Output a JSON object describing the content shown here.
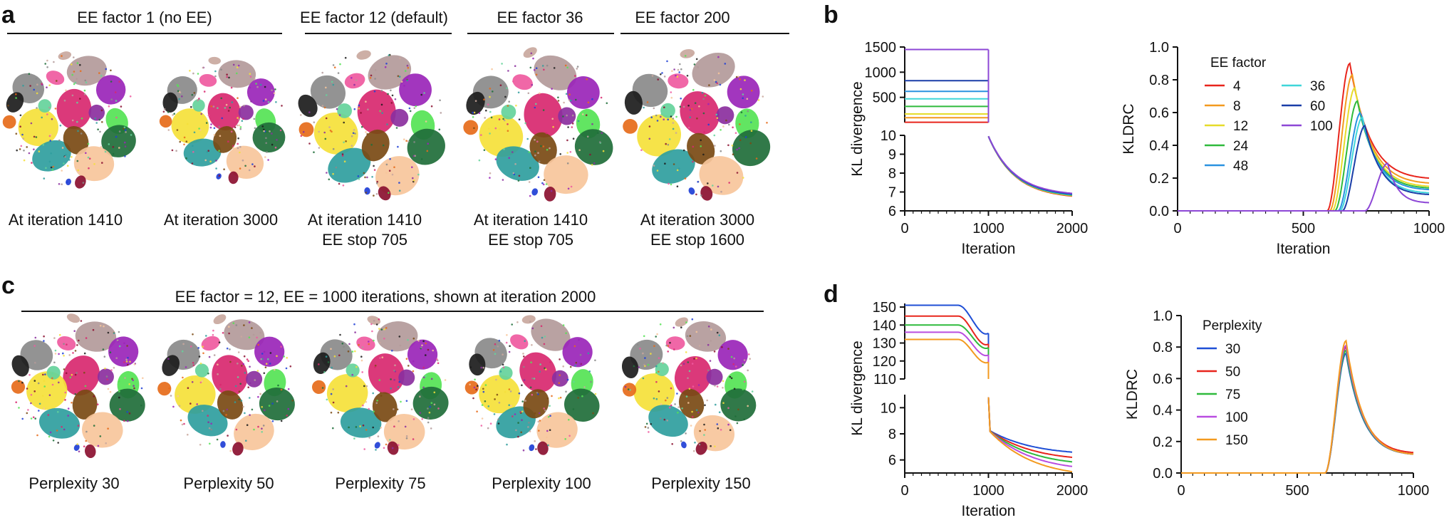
{
  "panel_labels": {
    "a": "a",
    "b": "b",
    "c": "c",
    "d": "d"
  },
  "colors": {
    "ee4": "#e8251c",
    "ee8": "#f39a1f",
    "ee12": "#e6dc2a",
    "ee24": "#2fba3c",
    "ee36": "#3fd6d9",
    "ee48": "#2a92e0",
    "ee60": "#1a3ea8",
    "ee100": "#8d47d6",
    "p30": "#1f4fd6",
    "p50": "#e8251c",
    "p75": "#2fba3c",
    "p100": "#b94de0",
    "p150": "#f39a1f",
    "cluster_palette": [
      "#b39a9a",
      "#c9a89e",
      "#8b2f9e",
      "#9a25b8",
      "#55e355",
      "#1f6e3a",
      "#d8286f",
      "#ef5aa0",
      "#f5e13a",
      "#2f9e9e",
      "#7a4a14",
      "#f7c59b",
      "#8a8a8a",
      "#1c1c1c",
      "#e66b1a",
      "#1f3fd6",
      "#8b1030",
      "#65d39b"
    ]
  },
  "panel_a": {
    "groups": [
      {
        "title": "EE factor 1 (no EE)"
      },
      {
        "title": "EE factor 12 (default)"
      },
      {
        "title": "EE factor 36"
      },
      {
        "title": "EE factor 200"
      }
    ],
    "captions": [
      {
        "line1": "At iteration 1410",
        "line2": ""
      },
      {
        "line1": "At iteration 3000",
        "line2": ""
      },
      {
        "line1": "At iteration 1410",
        "line2": "EE stop 705"
      },
      {
        "line1": "At iteration 1410",
        "line2": "EE stop 705"
      },
      {
        "line1": "At iteration 3000",
        "line2": "EE stop 1600"
      }
    ]
  },
  "panel_c": {
    "title": "EE factor = 12, EE = 1000 iterations, shown at iteration 2000",
    "captions": [
      "Perplexity 30",
      "Perplexity 50",
      "Perplexity 75",
      "Perplexity 100",
      "Perplexity 150"
    ]
  },
  "chart_data": [
    {
      "id": "b-kl",
      "type": "line",
      "title": "",
      "xlabel": "Iteration",
      "ylabel": "KL divergence",
      "xlim": [
        0,
        2000
      ],
      "x_ticks": [
        "0",
        "1000",
        "2000"
      ],
      "upper_ylim": [
        0,
        1500
      ],
      "upper_y_ticks": [
        "500",
        "1000",
        "1500"
      ],
      "lower_ylim": [
        6,
        10
      ],
      "lower_y_ticks": [
        "6",
        "7",
        "8",
        "9",
        "10"
      ],
      "series": [
        {
          "name": "4",
          "color_key": "ee4",
          "ee_value": 5,
          "final": 6.65
        },
        {
          "name": "8",
          "color_key": "ee8",
          "ee_value": 95,
          "final": 6.67
        },
        {
          "name": "12",
          "color_key": "ee12",
          "ee_value": 170,
          "final": 6.69
        },
        {
          "name": "24",
          "color_key": "ee24",
          "ee_value": 320,
          "final": 6.7
        },
        {
          "name": "36",
          "color_key": "ee36",
          "ee_value": 470,
          "final": 6.72
        },
        {
          "name": "48",
          "color_key": "ee48",
          "ee_value": 620,
          "final": 6.74
        },
        {
          "name": "60",
          "color_key": "ee60",
          "ee_value": 830,
          "final": 6.76
        },
        {
          "name": "100",
          "color_key": "ee100",
          "ee_value": 1450,
          "final": 6.8
        }
      ]
    },
    {
      "id": "b-kldrc",
      "type": "line",
      "title": "",
      "xlabel": "Iteration",
      "ylabel": "KLDRC",
      "xlim": [
        0,
        1000
      ],
      "x_ticks": [
        "0",
        "500",
        "1000"
      ],
      "ylim": [
        0,
        1.0
      ],
      "y_ticks": [
        "0.0",
        "0.2",
        "0.4",
        "0.6",
        "0.8",
        "1.0"
      ],
      "legend_title": "EE factor",
      "legend_position": "top-left",
      "series": [
        {
          "name": "4",
          "color_key": "ee4",
          "peak_x": 685,
          "peak_y": 0.9,
          "tail": 0.2
        },
        {
          "name": "8",
          "color_key": "ee8",
          "peak_x": 695,
          "peak_y": 0.83,
          "tail": 0.17
        },
        {
          "name": "12",
          "color_key": "ee12",
          "peak_x": 705,
          "peak_y": 0.75,
          "tail": 0.15
        },
        {
          "name": "24",
          "color_key": "ee24",
          "peak_x": 715,
          "peak_y": 0.67,
          "tail": 0.14
        },
        {
          "name": "48",
          "color_key": "ee48",
          "peak_x": 728,
          "peak_y": 0.6,
          "tail": 0.13
        },
        {
          "name": "36",
          "color_key": "ee36",
          "peak_x": 735,
          "peak_y": 0.57,
          "tail": 0.11
        },
        {
          "name": "60",
          "color_key": "ee60",
          "peak_x": 745,
          "peak_y": 0.52,
          "tail": 0.1
        },
        {
          "name": "100",
          "color_key": "ee100",
          "peak_x": 835,
          "peak_y": 0.29,
          "tail": 0.05
        }
      ],
      "legend_order": [
        "4",
        "8",
        "12",
        "24",
        "48",
        "36",
        "60",
        "100"
      ]
    },
    {
      "id": "d-kl",
      "type": "line",
      "title": "",
      "xlabel": "Iteration",
      "ylabel": "KL divergence",
      "xlim": [
        0,
        2000
      ],
      "x_ticks": [
        "0",
        "1000",
        "2000"
      ],
      "upper_ylim": [
        110,
        152
      ],
      "upper_y_ticks": [
        "110",
        "120",
        "130",
        "140",
        "150"
      ],
      "lower_ylim": [
        5,
        11
      ],
      "lower_y_ticks": [
        "6",
        "8",
        "10"
      ],
      "series": [
        {
          "name": "30",
          "color_key": "p30",
          "ee_value": 151,
          "final": 6.6
        },
        {
          "name": "50",
          "color_key": "p50",
          "ee_value": 145,
          "final": 6.2
        },
        {
          "name": "75",
          "color_key": "p75",
          "ee_value": 140,
          "final": 5.85
        },
        {
          "name": "100",
          "color_key": "p100",
          "ee_value": 136,
          "final": 5.5
        },
        {
          "name": "150",
          "color_key": "p150",
          "ee_value": 132,
          "final": 5.1
        }
      ]
    },
    {
      "id": "d-kldrc",
      "type": "line",
      "title": "",
      "xlabel": "",
      "ylabel": "KLDRC",
      "xlim": [
        0,
        1000
      ],
      "x_ticks": [
        "0",
        "500",
        "1000"
      ],
      "ylim": [
        0,
        1.0
      ],
      "y_ticks": [
        "0.0",
        "0.2",
        "0.4",
        "0.6",
        "0.8",
        "1.0"
      ],
      "legend_title": "Perplexity",
      "legend_position": "top-left",
      "series": [
        {
          "name": "30",
          "color_key": "p30",
          "peak_x": 710,
          "peak_y": 0.76,
          "tail": 0.12
        },
        {
          "name": "50",
          "color_key": "p50",
          "peak_x": 710,
          "peak_y": 0.8,
          "tail": 0.13
        },
        {
          "name": "75",
          "color_key": "p75",
          "peak_x": 710,
          "peak_y": 0.78,
          "tail": 0.12
        },
        {
          "name": "100",
          "color_key": "p100",
          "peak_x": 710,
          "peak_y": 0.81,
          "tail": 0.12
        },
        {
          "name": "150",
          "color_key": "p150",
          "peak_x": 710,
          "peak_y": 0.84,
          "tail": 0.12
        }
      ]
    }
  ]
}
